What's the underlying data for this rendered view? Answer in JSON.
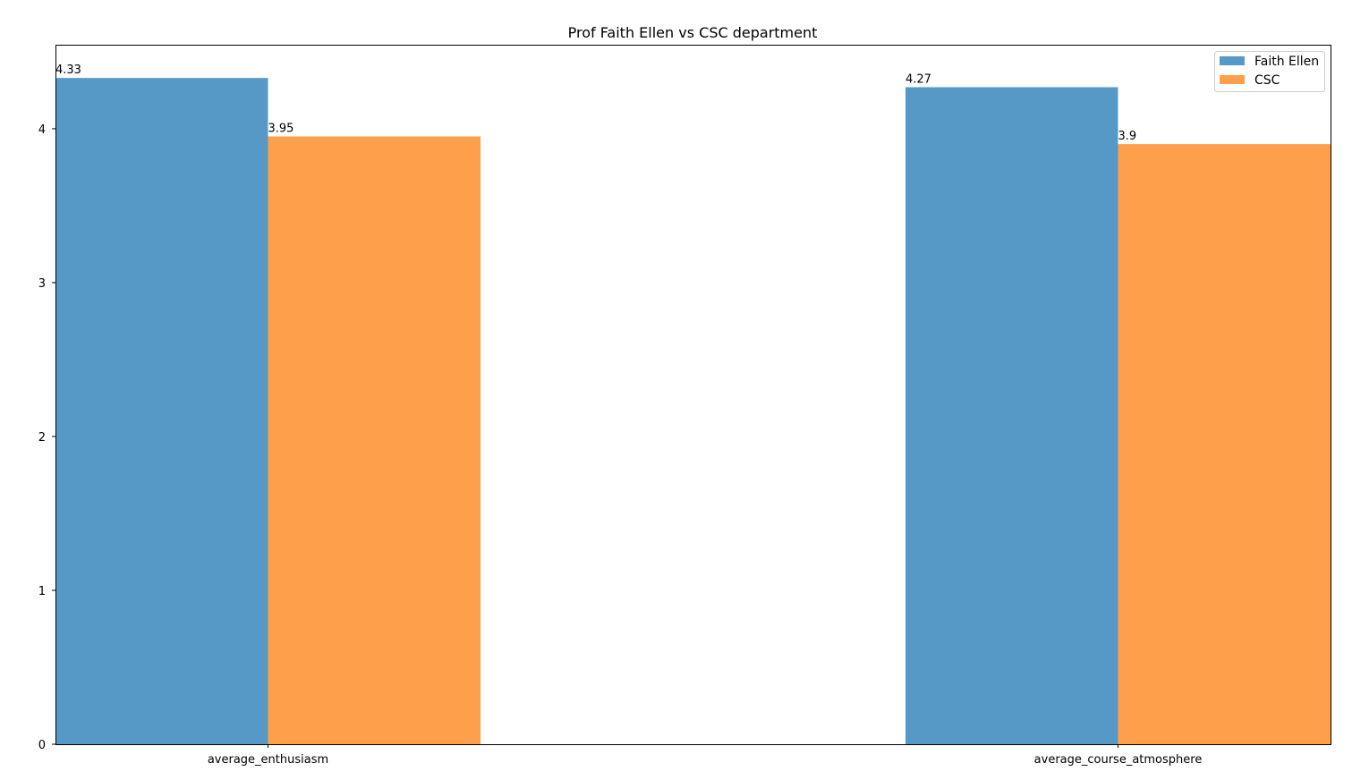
{
  "chart_data": {
    "type": "bar",
    "title": "Prof Faith Ellen vs CSC department",
    "xlabel": "",
    "ylabel": "",
    "categories": [
      "average_enthusiasm",
      "average_course_atmosphere"
    ],
    "series": [
      {
        "name": "Faith Ellen",
        "values": [
          4.33,
          4.27
        ],
        "labels": [
          "4.33",
          "4.27"
        ],
        "color": "#5699c6"
      },
      {
        "name": "CSC",
        "values": [
          3.95,
          3.9
        ],
        "labels": [
          "3.95",
          "3.9"
        ],
        "color": "#fe9f4b"
      }
    ],
    "ylim": [
      0,
      4.546
    ],
    "yticks": [
      0,
      1,
      2,
      3,
      4
    ],
    "ytick_labels": [
      "0",
      "1",
      "2",
      "3",
      "4"
    ],
    "grid": false,
    "legend_position": "top-right"
  }
}
